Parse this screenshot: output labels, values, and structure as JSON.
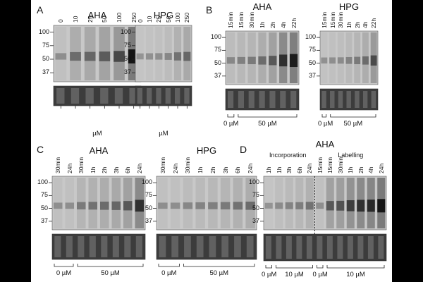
{
  "colors": {
    "frame_background": "#000000",
    "page_background": "#ffffff",
    "blot_background": "#c8c8c8",
    "lane_band": "#8a8a8a",
    "loading_control": "#3c3c3c"
  },
  "panels": [
    {
      "label": "A",
      "blots": [
        {
          "title": "AHA",
          "mw_markers": [
            "100",
            "75",
            "50",
            "37"
          ],
          "lane_labels": [
            "0",
            "10",
            "25",
            "50",
            "100",
            "250"
          ],
          "groups": [],
          "unit": "µM",
          "signal": [
            0.1,
            0.35,
            0.4,
            0.48,
            0.62,
            1.0
          ]
        },
        {
          "title": "HPG",
          "mw_markers": [
            "100",
            "75",
            "50",
            "37"
          ],
          "lane_labels": [
            "0",
            "10",
            "25",
            "50",
            "100",
            "250"
          ],
          "groups": [],
          "unit": "µM",
          "signal": [
            0.05,
            0.08,
            0.1,
            0.15,
            0.3,
            0.4
          ]
        }
      ]
    },
    {
      "label": "B",
      "blots": [
        {
          "title": "AHA",
          "mw_markers": [
            "100",
            "75",
            "50",
            "37"
          ],
          "lane_labels": [
            "15min",
            "15min",
            "30min",
            "1h",
            "2h",
            "4h",
            "22h"
          ],
          "groups": [
            {
              "label": "0 µM",
              "span": 1
            },
            {
              "label": "50 µM",
              "span": 6
            }
          ],
          "unit": "",
          "signal": [
            0.15,
            0.2,
            0.25,
            0.35,
            0.5,
            0.8,
            0.95
          ]
        },
        {
          "title": "HPG",
          "mw_markers": [
            "100",
            "75",
            "50",
            "37"
          ],
          "lane_labels": [
            "15min",
            "15min",
            "30min",
            "1h",
            "2h",
            "4h",
            "22h"
          ],
          "groups": [
            {
              "label": "0 µM",
              "span": 1
            },
            {
              "label": "50 µM",
              "span": 6
            }
          ],
          "unit": "",
          "signal": [
            0.08,
            0.1,
            0.12,
            0.18,
            0.25,
            0.35,
            0.6
          ]
        }
      ]
    },
    {
      "label": "C",
      "blots": [
        {
          "title": "AHA",
          "mw_markers": [
            "100",
            "75",
            "50",
            "37"
          ],
          "lane_labels": [
            "30min",
            "24h",
            "30min",
            "1h",
            "2h",
            "3h",
            "6h",
            "24h"
          ],
          "groups": [
            {
              "label": "0 µM",
              "span": 2
            },
            {
              "label": "50 µM",
              "span": 6
            }
          ],
          "unit": "",
          "signal": [
            0.1,
            0.1,
            0.25,
            0.3,
            0.35,
            0.4,
            0.5,
            0.8
          ]
        },
        {
          "title": "HPG",
          "mw_markers": [
            "100",
            "75",
            "50",
            "37"
          ],
          "lane_labels": [
            "30min",
            "24h",
            "30min",
            "1h",
            "2h",
            "3h",
            "6h",
            "24h"
          ],
          "groups": [
            {
              "label": "0 µM",
              "span": 2
            },
            {
              "label": "50 µM",
              "span": 6
            }
          ],
          "unit": "",
          "signal": [
            0.1,
            0.1,
            0.15,
            0.18,
            0.2,
            0.25,
            0.3,
            0.35
          ]
        }
      ]
    },
    {
      "label": "D",
      "blots": [
        {
          "title": "AHA",
          "subtitles": [
            "Incorporation",
            "Labelling"
          ],
          "mw_markers": [
            "100",
            "75",
            "50",
            "37"
          ],
          "lane_labels": [
            "1h",
            "1h",
            "3h",
            "6h",
            "24h",
            "15min",
            "15min",
            "30min",
            "1h",
            "2h",
            "4h",
            "24h"
          ],
          "groups": [
            {
              "label": "0 µM",
              "span": 1
            },
            {
              "label": "10 µM",
              "span": 4
            },
            {
              "label": "0 µM",
              "span": 1
            },
            {
              "label": "10 µM",
              "span": 6
            }
          ],
          "unit": "",
          "signal": [
            0.05,
            0.12,
            0.18,
            0.22,
            0.3,
            0.1,
            0.5,
            0.55,
            0.7,
            0.8,
            0.85,
            1.0
          ]
        }
      ]
    }
  ]
}
